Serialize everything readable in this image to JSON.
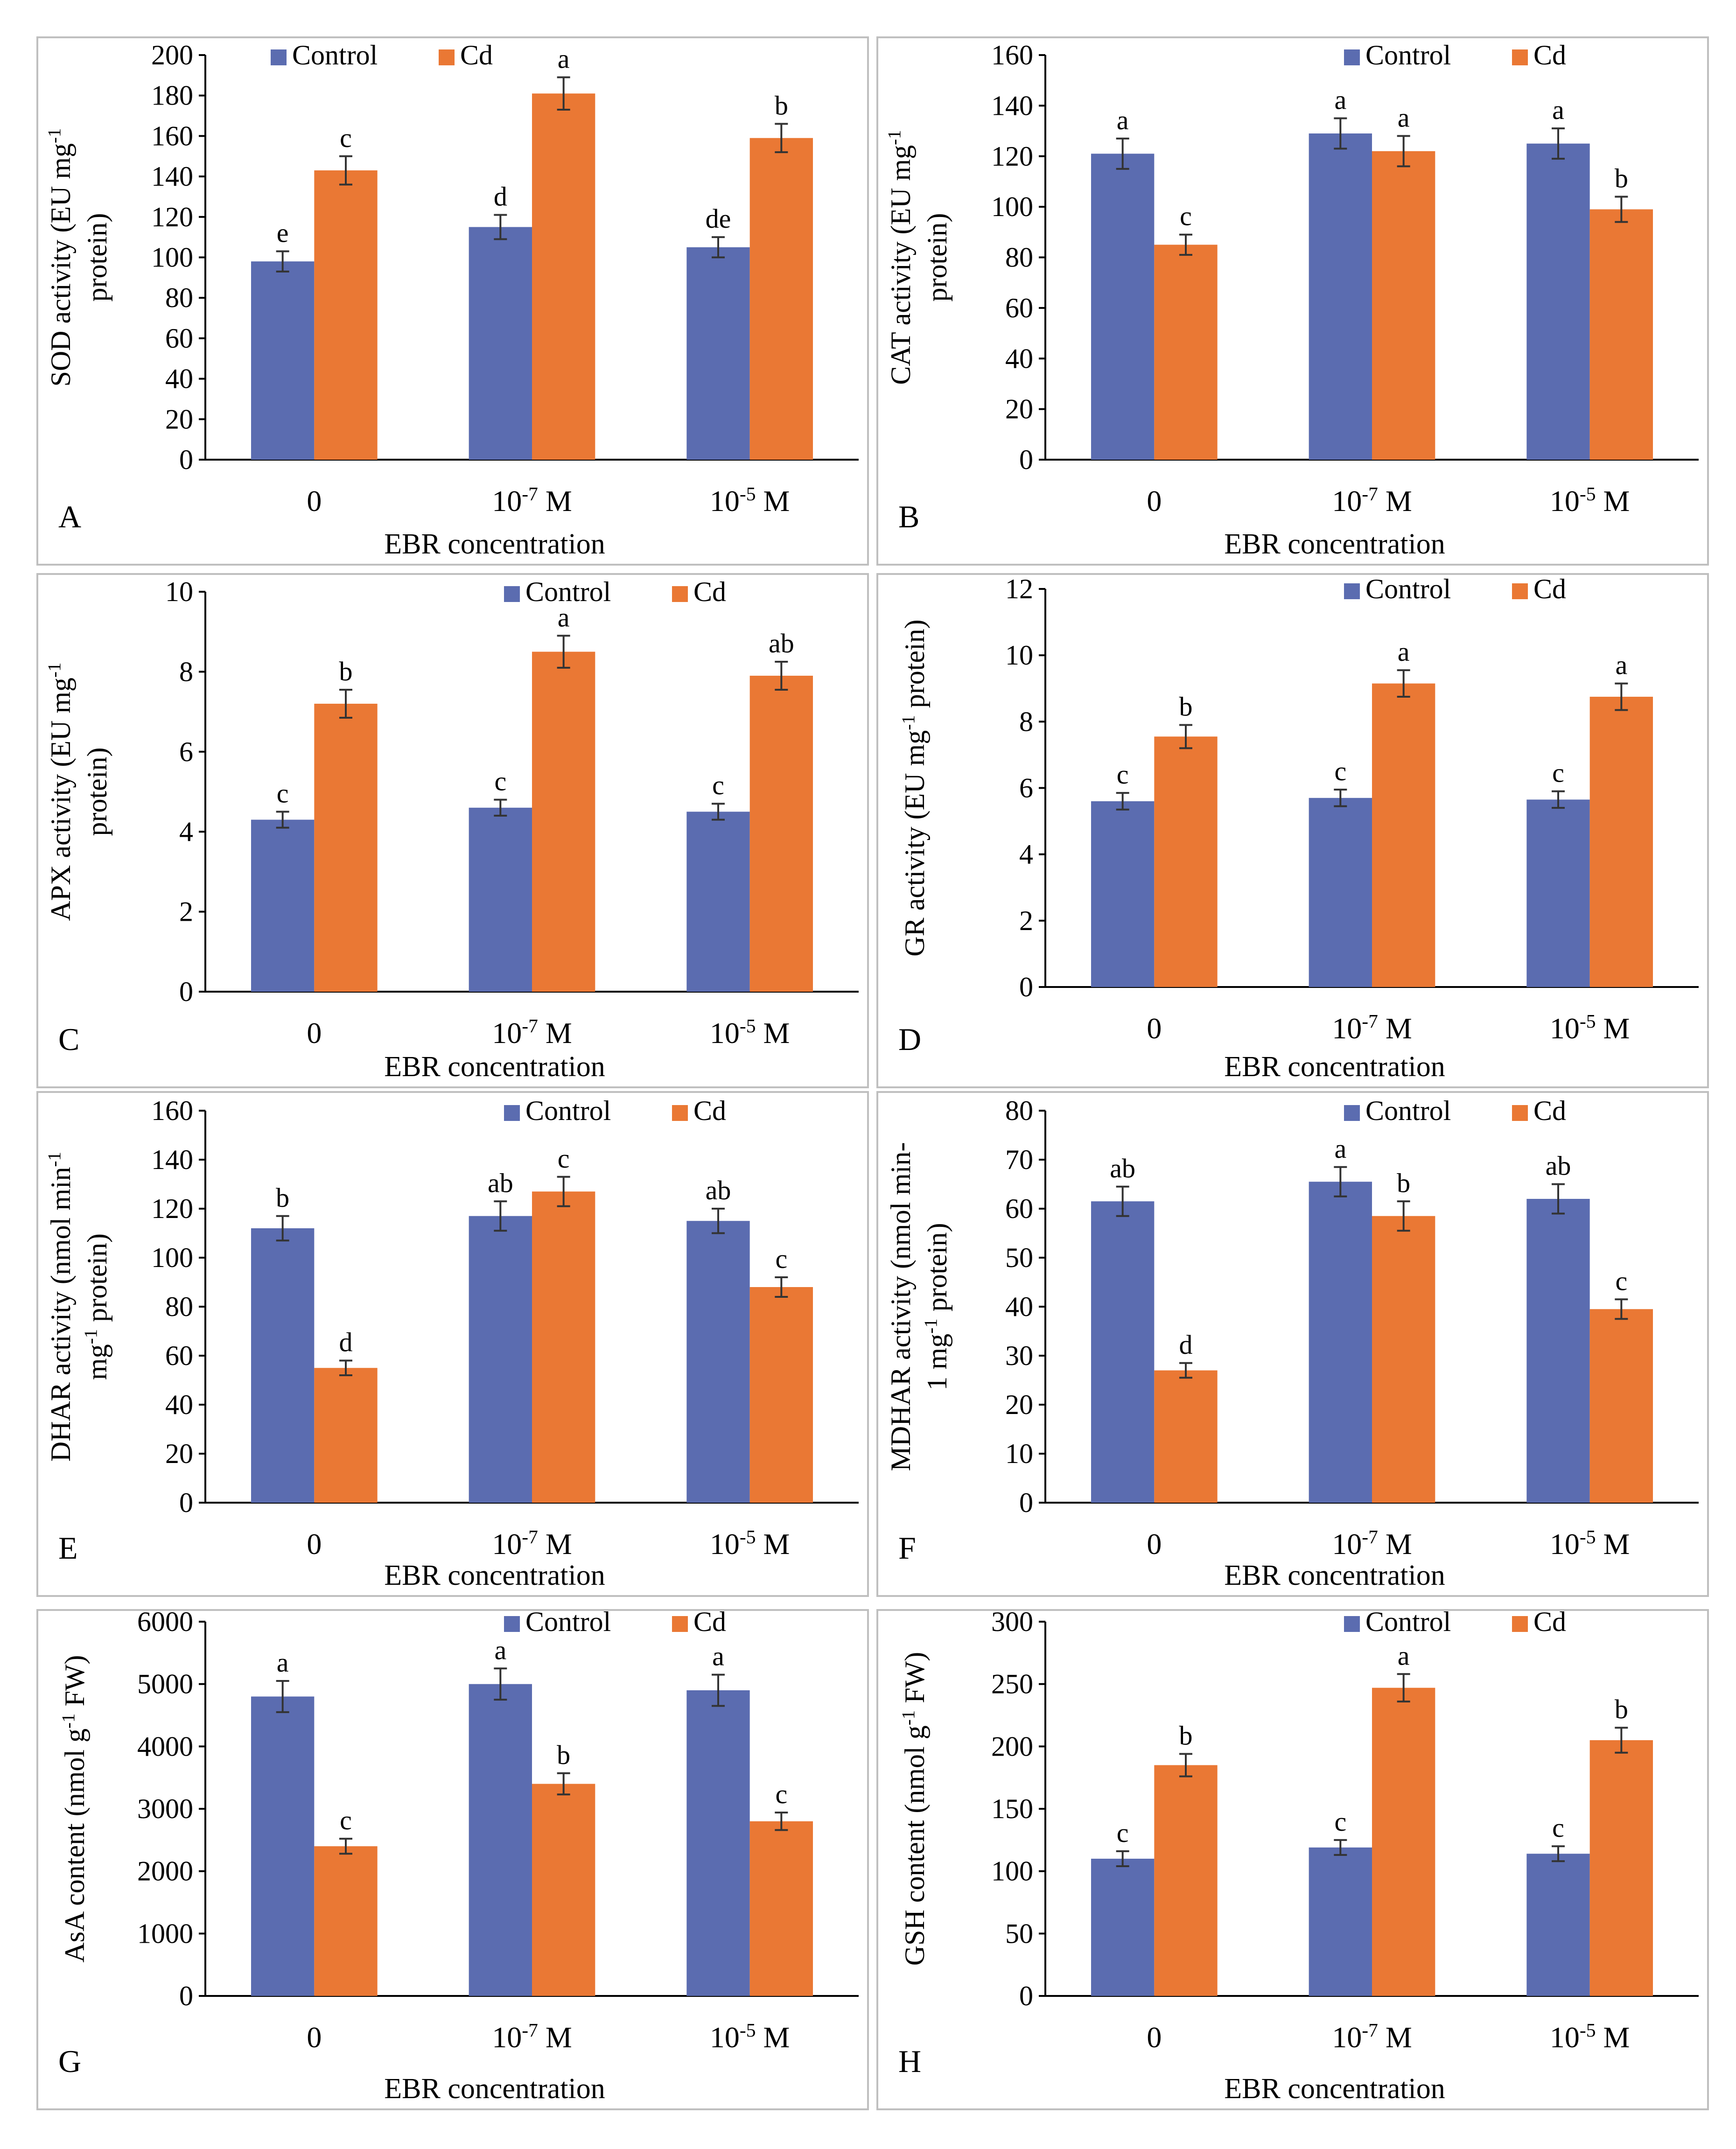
{
  "colors": {
    "control": "#5B6CB0",
    "cd": "#EA7834",
    "axis": "#000000",
    "panel_border": "#BFBFBF"
  },
  "chart_data": [
    {
      "panel": "A",
      "type": "bar",
      "categories": [
        "0",
        "10-7 M",
        "10-5 M"
      ],
      "xlabel": "EBR concentration",
      "ylabel_lines": [
        "SOD activity (EU mg-1",
        "protein)"
      ],
      "ylim": [
        0,
        200
      ],
      "ystep": 20,
      "legend_position": "top-left",
      "series": [
        {
          "name": "Control",
          "values": [
            98,
            115,
            105
          ],
          "errors": [
            5,
            6,
            5
          ],
          "letters": [
            "e",
            "d",
            "de"
          ]
        },
        {
          "name": "Cd",
          "values": [
            143,
            181,
            159
          ],
          "errors": [
            7,
            8,
            7
          ],
          "letters": [
            "c",
            "a",
            "b"
          ]
        }
      ]
    },
    {
      "panel": "B",
      "type": "bar",
      "categories": [
        "0",
        "10-7 M",
        "10-5 M"
      ],
      "xlabel": "EBR concentration",
      "ylabel_lines": [
        "CAT activity (EU mg-1",
        "protein)"
      ],
      "ylim": [
        0,
        160
      ],
      "ystep": 20,
      "legend_position": "top-right",
      "series": [
        {
          "name": "Control",
          "values": [
            121,
            129,
            125
          ],
          "errors": [
            6,
            6,
            6
          ],
          "letters": [
            "a",
            "a",
            "a"
          ]
        },
        {
          "name": "Cd",
          "values": [
            85,
            122,
            99
          ],
          "errors": [
            4,
            6,
            5
          ],
          "letters": [
            "c",
            "a",
            "b"
          ]
        }
      ]
    },
    {
      "panel": "C",
      "type": "bar",
      "categories": [
        "0",
        "10-7 M",
        "10-5 M"
      ],
      "xlabel": "EBR concentration",
      "ylabel_lines": [
        "APX activity (EU mg-1",
        "protein)"
      ],
      "ylim": [
        0,
        10
      ],
      "ystep": 2,
      "legend_position": "top-right",
      "series": [
        {
          "name": "Control",
          "values": [
            4.3,
            4.6,
            4.5
          ],
          "errors": [
            0.2,
            0.2,
            0.2
          ],
          "letters": [
            "c",
            "c",
            "c"
          ]
        },
        {
          "name": "Cd",
          "values": [
            7.2,
            8.5,
            7.9
          ],
          "errors": [
            0.35,
            0.4,
            0.35
          ],
          "letters": [
            "b",
            "a",
            "ab"
          ]
        }
      ]
    },
    {
      "panel": "D",
      "type": "bar",
      "categories": [
        "0",
        "10-7 M",
        "10-5 M"
      ],
      "xlabel": "EBR concentration",
      "ylabel_lines": [
        "GR activity (EU mg-1 protein)"
      ],
      "ylim": [
        0,
        12
      ],
      "ystep": 2,
      "legend_position": "top-right",
      "series": [
        {
          "name": "Control",
          "values": [
            5.6,
            5.7,
            5.65
          ],
          "errors": [
            0.25,
            0.25,
            0.25
          ],
          "letters": [
            "c",
            "c",
            "c"
          ]
        },
        {
          "name": "Cd",
          "values": [
            7.55,
            9.15,
            8.75
          ],
          "errors": [
            0.35,
            0.4,
            0.4
          ],
          "letters": [
            "b",
            "a",
            "a"
          ]
        }
      ]
    },
    {
      "panel": "E",
      "type": "bar",
      "categories": [
        "0",
        "10-7 M",
        "10-5 M"
      ],
      "xlabel": "EBR concentration",
      "ylabel_lines": [
        "DHAR activity (nmol min-1",
        "mg-1 protein)"
      ],
      "ylim": [
        0,
        160
      ],
      "ystep": 20,
      "legend_position": "top-right",
      "series": [
        {
          "name": "Control",
          "values": [
            112,
            117,
            115
          ],
          "errors": [
            5,
            6,
            5
          ],
          "letters": [
            "b",
            "ab",
            "ab"
          ]
        },
        {
          "name": "Cd",
          "values": [
            55,
            127,
            88
          ],
          "errors": [
            3,
            6,
            4
          ],
          "letters": [
            "d",
            "c",
            "c"
          ]
        }
      ]
    },
    {
      "panel": "F",
      "type": "bar",
      "categories": [
        "0",
        "10-7 M",
        "10-5 M"
      ],
      "xlabel": "EBR concentration",
      "ylabel_lines": [
        "MDHAR activity (nmol min-",
        "1 mg-1 protein)"
      ],
      "ylim": [
        0,
        80
      ],
      "ystep": 10,
      "legend_position": "top-right",
      "series": [
        {
          "name": "Control",
          "values": [
            61.5,
            65.5,
            62
          ],
          "errors": [
            3,
            3,
            3
          ],
          "letters": [
            "ab",
            "a",
            "ab"
          ]
        },
        {
          "name": "Cd",
          "values": [
            27,
            58.5,
            39.5
          ],
          "errors": [
            1.5,
            3,
            2
          ],
          "letters": [
            "d",
            "b",
            "c"
          ]
        }
      ]
    },
    {
      "panel": "G",
      "type": "bar",
      "categories": [
        "0",
        "10-7 M",
        "10-5 M"
      ],
      "xlabel": "EBR concentration",
      "ylabel_lines": [
        "AsA content (nmol g-1 FW)"
      ],
      "ylim": [
        0,
        6000
      ],
      "ystep": 1000,
      "legend_position": "top-right",
      "series": [
        {
          "name": "Control",
          "values": [
            4800,
            5000,
            4900
          ],
          "errors": [
            250,
            250,
            250
          ],
          "letters": [
            "a",
            "a",
            "a"
          ]
        },
        {
          "name": "Cd",
          "values": [
            2400,
            3400,
            2800
          ],
          "errors": [
            120,
            170,
            140
          ],
          "letters": [
            "c",
            "b",
            "c"
          ]
        }
      ]
    },
    {
      "panel": "H",
      "type": "bar",
      "categories": [
        "0",
        "10-7 M",
        "10-5 M"
      ],
      "xlabel": "EBR concentration",
      "ylabel_lines": [
        "GSH content (nmol g-1 FW)"
      ],
      "ylim": [
        0,
        300
      ],
      "ystep": 50,
      "legend_position": "top-right",
      "series": [
        {
          "name": "Control",
          "values": [
            110,
            119,
            114
          ],
          "errors": [
            6,
            6,
            6
          ],
          "letters": [
            "c",
            "c",
            "c"
          ]
        },
        {
          "name": "Cd",
          "values": [
            185,
            247,
            205
          ],
          "errors": [
            9,
            11,
            10
          ],
          "letters": [
            "b",
            "a",
            "b"
          ]
        }
      ]
    }
  ]
}
